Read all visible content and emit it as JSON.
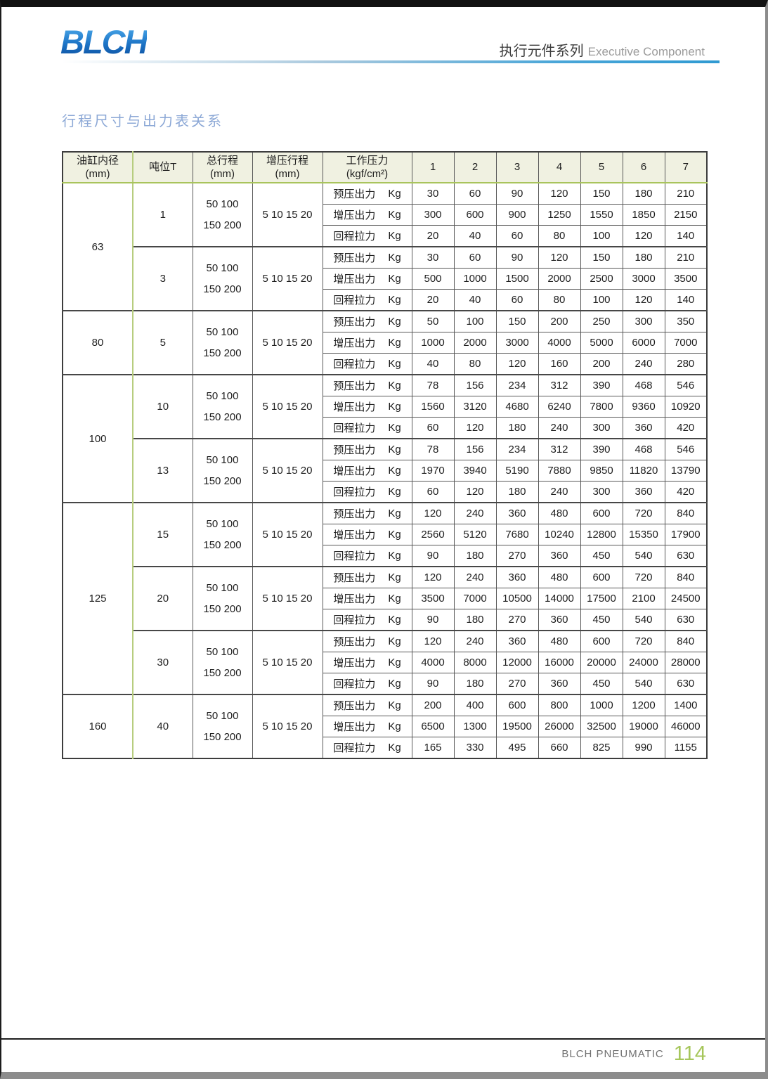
{
  "page": {
    "brand_logo": "BLCH",
    "header_title_zh": "执行元件系列",
    "header_title_en": "Executive Component",
    "section_title": "行程尺寸与出力表关系",
    "footer_brand": "BLCH PNEUMATIC",
    "page_number": "114"
  },
  "colors": {
    "accent_blue": "#2f9ad2",
    "title_blue": "#8ca8d6",
    "table_green_border": "#a9c45c",
    "header_cell_bg": "#f0f1e1",
    "page_number_green": "#a6c65a"
  },
  "table": {
    "columns": {
      "bore": [
        "油缸内径",
        "(mm)"
      ],
      "tonnage": [
        "吨位T"
      ],
      "total_stroke": [
        "总行程",
        "(mm)"
      ],
      "boost_stroke": [
        "增压行程",
        "(mm)"
      ],
      "working_pressure": [
        "工作压力",
        "(kgf/cm²)"
      ],
      "pressures": [
        "1",
        "2",
        "3",
        "4",
        "5",
        "6",
        "7"
      ]
    },
    "row_labels": [
      [
        "预压出力",
        "Kg"
      ],
      [
        "增压出力",
        "Kg"
      ],
      [
        "回程拉力",
        "Kg"
      ]
    ],
    "total_stroke_value": [
      "50 100",
      "150 200"
    ],
    "boost_stroke_value": "5 10 15 20",
    "groups": [
      {
        "bore": "63",
        "blocks": [
          {
            "tonnage": "1",
            "rows": [
              [
                30,
                60,
                90,
                120,
                150,
                180,
                210
              ],
              [
                300,
                600,
                900,
                1250,
                1550,
                1850,
                2150
              ],
              [
                20,
                40,
                60,
                80,
                100,
                120,
                140
              ]
            ]
          },
          {
            "tonnage": "3",
            "rows": [
              [
                30,
                60,
                90,
                120,
                150,
                180,
                210
              ],
              [
                500,
                1000,
                1500,
                2000,
                2500,
                3000,
                3500
              ],
              [
                20,
                40,
                60,
                80,
                100,
                120,
                140
              ]
            ]
          }
        ]
      },
      {
        "bore": "80",
        "blocks": [
          {
            "tonnage": "5",
            "rows": [
              [
                50,
                100,
                150,
                200,
                250,
                300,
                350
              ],
              [
                1000,
                2000,
                3000,
                4000,
                5000,
                6000,
                7000
              ],
              [
                40,
                80,
                120,
                160,
                200,
                240,
                280
              ]
            ]
          }
        ]
      },
      {
        "bore": "100",
        "blocks": [
          {
            "tonnage": "10",
            "rows": [
              [
                78,
                156,
                234,
                312,
                390,
                468,
                546
              ],
              [
                1560,
                3120,
                4680,
                6240,
                7800,
                9360,
                10920
              ],
              [
                60,
                120,
                180,
                240,
                300,
                360,
                420
              ]
            ]
          },
          {
            "tonnage": "13",
            "rows": [
              [
                78,
                156,
                234,
                312,
                390,
                468,
                546
              ],
              [
                1970,
                3940,
                5190,
                7880,
                9850,
                11820,
                13790
              ],
              [
                60,
                120,
                180,
                240,
                300,
                360,
                420
              ]
            ]
          }
        ]
      },
      {
        "bore": "125",
        "blocks": [
          {
            "tonnage": "15",
            "rows": [
              [
                120,
                240,
                360,
                480,
                600,
                720,
                840
              ],
              [
                2560,
                5120,
                7680,
                10240,
                12800,
                15350,
                17900
              ],
              [
                90,
                180,
                270,
                360,
                450,
                540,
                630
              ]
            ]
          },
          {
            "tonnage": "20",
            "rows": [
              [
                120,
                240,
                360,
                480,
                600,
                720,
                840
              ],
              [
                3500,
                7000,
                10500,
                14000,
                17500,
                2100,
                24500
              ],
              [
                90,
                180,
                270,
                360,
                450,
                540,
                630
              ]
            ]
          },
          {
            "tonnage": "30",
            "rows": [
              [
                120,
                240,
                360,
                480,
                600,
                720,
                840
              ],
              [
                4000,
                8000,
                12000,
                16000,
                20000,
                24000,
                28000
              ],
              [
                90,
                180,
                270,
                360,
                450,
                540,
                630
              ]
            ]
          }
        ]
      },
      {
        "bore": "160",
        "blocks": [
          {
            "tonnage": "40",
            "rows": [
              [
                200,
                400,
                600,
                800,
                1000,
                1200,
                1400
              ],
              [
                6500,
                1300,
                19500,
                26000,
                32500,
                19000,
                46000
              ],
              [
                165,
                330,
                495,
                660,
                825,
                990,
                1155
              ]
            ]
          }
        ]
      }
    ]
  }
}
